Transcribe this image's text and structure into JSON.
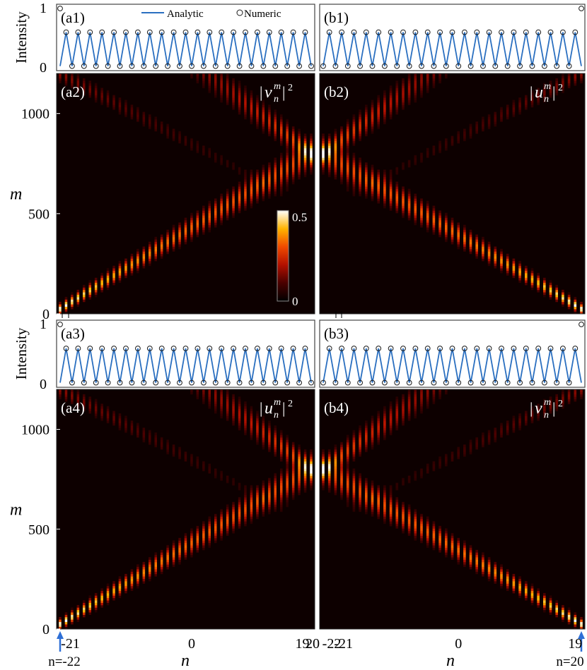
{
  "chart_data": {
    "type": "heatmap",
    "colors": {
      "line": "#2a6fc0",
      "marker": "#1a1a1a",
      "heat_background": "#0d0000",
      "colormap": [
        "#000000",
        "#4a0000",
        "#b21000",
        "#f04a00",
        "#ffb400",
        "#ffffff"
      ],
      "arrow": "#2e6fd6"
    },
    "intensity_axis": {
      "label": "Intensity",
      "ylim": [
        0,
        1
      ],
      "ticks": [
        "0",
        "1"
      ]
    },
    "heatmap_axis": {
      "ylabel": "m",
      "ylim": [
        0,
        1200
      ],
      "yticks": [
        "0",
        "500",
        "1000"
      ],
      "xlabel": "n"
    },
    "legend": {
      "analytic": "Analytic",
      "numeric": "Numeric"
    },
    "colorbar": {
      "min_label": "0",
      "max_label": "0.5",
      "range": [
        0,
        0.5
      ]
    },
    "bottom_labels": {
      "left": {
        "ticks": [
          "-21",
          "0",
          "19",
          "20"
        ],
        "arrow_label": "n=-22"
      },
      "right": {
        "ticks": [
          "-22",
          "-21",
          "0",
          "19"
        ],
        "arrow_label": "n=20"
      }
    },
    "panels": [
      {
        "id": "a1",
        "label": "(a1)",
        "type": "line+scatter",
        "peak_site": -22,
        "peak_value": 1.0,
        "high": 0.6,
        "low": 0.03,
        "n_range": [
          -22,
          20
        ]
      },
      {
        "id": "b1",
        "label": "(b1)",
        "type": "line+scatter",
        "peak_site": 20,
        "peak_value": 1.0,
        "high": 0.6,
        "low": 0.03,
        "n_range": [
          -22,
          20
        ]
      },
      {
        "id": "a2",
        "label": "(a2)",
        "type": "heatmap",
        "field": "|v_n^m|^2",
        "field_base": "v",
        "source_site": -22,
        "max_intensity": 0.5
      },
      {
        "id": "b2",
        "label": "(b2)",
        "type": "heatmap",
        "field": "|u_n^m|^2",
        "field_base": "u",
        "source_site": 20,
        "max_intensity": 0.5
      },
      {
        "id": "a3",
        "label": "(a3)",
        "type": "line+scatter",
        "peak_site": -22,
        "peak_value": 1.0,
        "high": 0.6,
        "low": 0.03,
        "n_range": [
          -22,
          20
        ]
      },
      {
        "id": "b3",
        "label": "(b3)",
        "type": "line+scatter",
        "peak_site": 20,
        "peak_value": 1.0,
        "high": 0.6,
        "low": 0.03,
        "n_range": [
          -22,
          20
        ]
      },
      {
        "id": "a4",
        "label": "(a4)",
        "type": "heatmap",
        "field": "|u_n^m|^2",
        "field_base": "u",
        "source_site": -22,
        "max_intensity": 0.5
      },
      {
        "id": "b4",
        "label": "(b4)",
        "type": "heatmap",
        "field": "|v_n^m|^2",
        "field_base": "v",
        "source_site": 20,
        "max_intensity": 0.5
      }
    ]
  }
}
